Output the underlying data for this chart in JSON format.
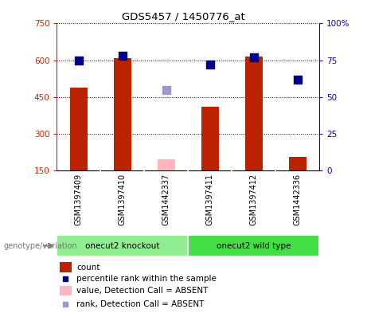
{
  "title": "GDS5457 / 1450776_at",
  "samples": [
    "GSM1397409",
    "GSM1397410",
    "GSM1442337",
    "GSM1397411",
    "GSM1397412",
    "GSM1442336"
  ],
  "count_values": [
    490,
    608,
    null,
    410,
    615,
    205
  ],
  "count_absent": [
    null,
    null,
    195,
    null,
    null,
    null
  ],
  "rank_values": [
    75,
    78,
    null,
    72,
    77,
    62
  ],
  "rank_absent": [
    null,
    null,
    55,
    null,
    null,
    null
  ],
  "ylim_left": [
    150,
    750
  ],
  "ylim_right": [
    0,
    100
  ],
  "yticks_left": [
    150,
    300,
    450,
    600,
    750
  ],
  "yticks_right": [
    0,
    25,
    50,
    75,
    100
  ],
  "left_axis_color": "#CC2200",
  "right_axis_color": "#0000BB",
  "bar_color_present": "#BB2200",
  "bar_color_absent": "#FFB6C1",
  "dot_color_present": "#00008B",
  "dot_color_absent": "#9999CC",
  "bar_width": 0.4,
  "dot_size": 45,
  "grid_color": "black",
  "bg_color": "#FFFFFF",
  "plot_bg_color": "#FFFFFF",
  "sample_bg_color": "#C8C8C8",
  "group1_color": "#90EE90",
  "group2_color": "#44DD44",
  "group1_label": "onecut2 knockout",
  "group2_label": "onecut2 wild type",
  "genotype_label": "genotype/variation",
  "legend_items": [
    {
      "label": "count",
      "color": "#BB2200",
      "type": "bar"
    },
    {
      "label": "percentile rank within the sample",
      "color": "#00008B",
      "type": "dot"
    },
    {
      "label": "value, Detection Call = ABSENT",
      "color": "#FFB6C1",
      "type": "bar"
    },
    {
      "label": "rank, Detection Call = ABSENT",
      "color": "#9999CC",
      "type": "dot"
    }
  ]
}
